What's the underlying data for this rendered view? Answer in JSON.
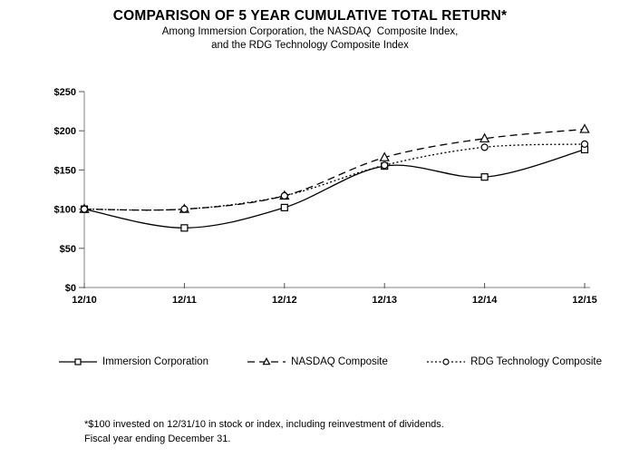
{
  "header": {
    "title": "COMPARISON OF 5 YEAR CUMULATIVE TOTAL RETURN*",
    "subtitle_line1": "Among Immersion Corporation, the NASDAQ  Composite Index,",
    "subtitle_line2": "and the RDG Technology Composite Index"
  },
  "footnote": {
    "line1": "*$100 invested on 12/31/10 in stock or index, including reinvestment of dividends.",
    "line2": "Fiscal year ending December 31."
  },
  "colors": {
    "series_line": "#000000",
    "axis_line": "#808080",
    "text": "#000000",
    "background": "#ffffff"
  },
  "chart_data": {
    "type": "line",
    "categories": [
      "12/10",
      "12/11",
      "12/12",
      "12/13",
      "12/14",
      "12/15"
    ],
    "series": [
      {
        "name": "Immersion Corporation",
        "marker": "square",
        "dash": "solid",
        "values": [
          100,
          76,
          102,
          155,
          141,
          176
        ]
      },
      {
        "name": "NASDAQ Composite",
        "marker": "triangle",
        "dash": "dashed",
        "values": [
          100,
          100,
          117,
          166,
          190,
          202
        ]
      },
      {
        "name": "RDG Technology Composite",
        "marker": "circle",
        "dash": "dotted",
        "values": [
          100,
          100,
          117,
          156,
          179,
          183
        ]
      }
    ],
    "ylim": [
      0,
      250
    ],
    "ytick_step": 50,
    "ytick_labels": [
      "$0",
      "$50",
      "$100",
      "$150",
      "$200",
      "$250"
    ],
    "grid": false,
    "legend_position": "bottom",
    "smooth_lines": true
  }
}
